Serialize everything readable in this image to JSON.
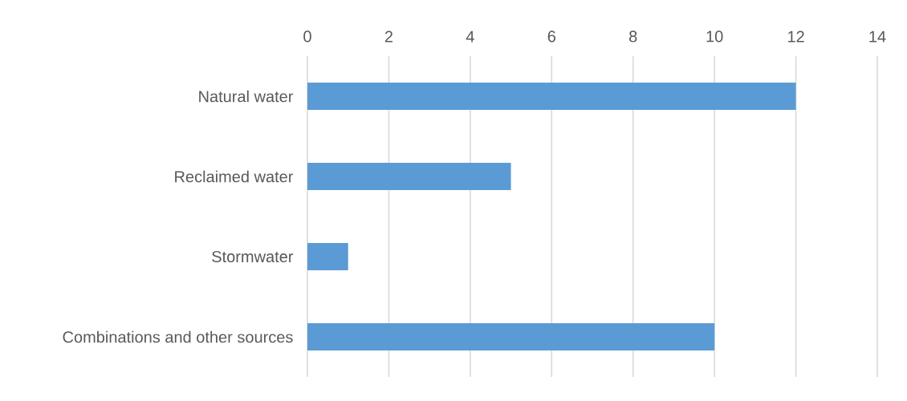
{
  "chart_data": {
    "type": "bar",
    "orientation": "horizontal",
    "categories": [
      "Natural water",
      "Reclaimed water",
      "Stormwater",
      "Combinations and other sources"
    ],
    "values": [
      12,
      5,
      1,
      10
    ],
    "color": "#5b9bd5",
    "xlim": [
      0,
      14
    ],
    "xticks": [
      0,
      2,
      4,
      6,
      8,
      10,
      12,
      14
    ],
    "grid": "x"
  }
}
